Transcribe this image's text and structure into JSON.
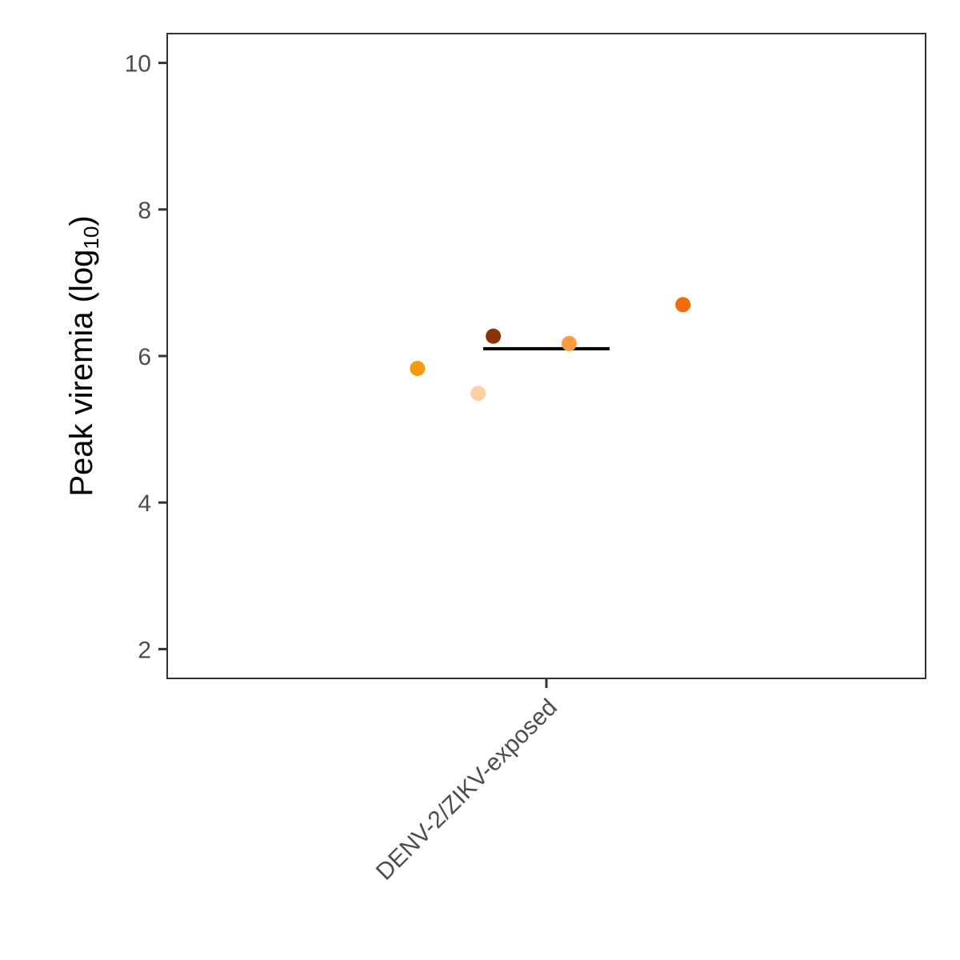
{
  "chart_data": {
    "type": "scatter",
    "categories": [
      "DENV-2/ZIKV-exposed"
    ],
    "ylabel": "Peak viremia (log",
    "ylabel_subscript": "10",
    "ylabel_suffix": ")",
    "xlabel": "",
    "title": "",
    "ylim": [
      1.6,
      10.4
    ],
    "yticks": [
      2,
      4,
      6,
      8,
      10
    ],
    "grid": false,
    "points": [
      {
        "category": "DENV-2/ZIKV-exposed",
        "y": 6.7,
        "jitter": 0.18,
        "color": "#F26A0A"
      },
      {
        "category": "DENV-2/ZIKV-exposed",
        "y": 6.27,
        "jitter": -0.07,
        "color": "#8B3206"
      },
      {
        "category": "DENV-2/ZIKV-exposed",
        "y": 6.17,
        "jitter": 0.03,
        "color": "#FB9A3E"
      },
      {
        "category": "DENV-2/ZIKV-exposed",
        "y": 5.83,
        "jitter": -0.17,
        "color": "#F59B0C"
      },
      {
        "category": "DENV-2/ZIKV-exposed",
        "y": 5.49,
        "jitter": -0.09,
        "color": "#FDD0A2"
      }
    ],
    "mean": {
      "category": "DENV-2/ZIKV-exposed",
      "y": 6.1,
      "color": "#000000"
    }
  }
}
